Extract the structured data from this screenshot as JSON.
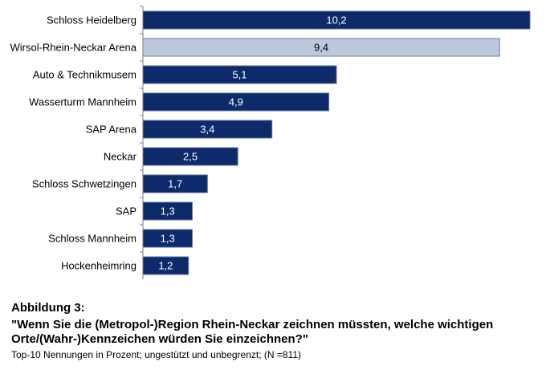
{
  "chart_data": {
    "type": "bar",
    "orientation": "horizontal",
    "categories": [
      "Schloss Heidelberg",
      "Wirsol-Rhein-Neckar Arena",
      "Auto & Technikmusem",
      "Wasserturm Mannheim",
      "SAP Arena",
      "Neckar",
      "Schloss Schwetzingen",
      "SAP",
      "Schloss Mannheim",
      "Hockenheimring"
    ],
    "values": [
      10.2,
      9.4,
      5.1,
      4.9,
      3.4,
      2.5,
      1.7,
      1.3,
      1.3,
      1.2
    ],
    "value_labels": [
      "10,2",
      "9,4",
      "5,1",
      "4,9",
      "3,4",
      "2,5",
      "1,7",
      "1,3",
      "1,3",
      "1,2"
    ],
    "xlim": [
      0,
      10.2
    ],
    "highlight_index": 1,
    "colors": {
      "bar": "#0d2a6b",
      "highlight_bar": "#bcc8de",
      "bar_stroke": "#5a6f9a",
      "highlight_stroke": "#6f7f9f",
      "label_on_bar": "#ffffff",
      "label_on_highlight": "#000000",
      "axis": "#7f7f7f"
    },
    "grid": false,
    "legend": "none"
  },
  "caption": {
    "title": "Abbildung 3:",
    "question": "\"Wenn Sie die (Metropol-)Region Rhein-Neckar zeichnen müssten, welche wichtigen Orte/(Wahr-)Kennzeichen würden Sie einzeichnen?\"",
    "note": "Top-10 Nennungen in Prozent; ungestützt und unbegrenzt; (N =811)"
  }
}
